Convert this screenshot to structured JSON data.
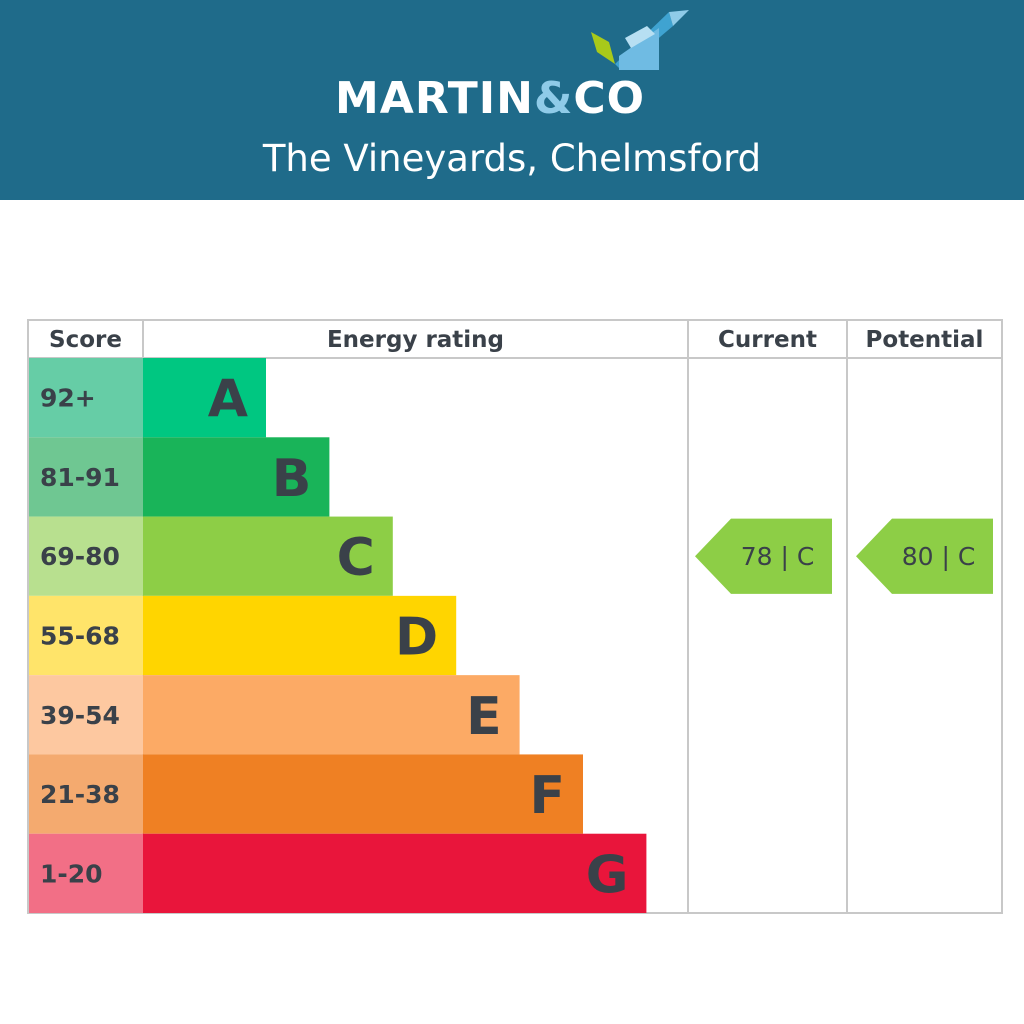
{
  "brand": {
    "logo_main": "MARTIN",
    "logo_amp": "&",
    "logo_end": "CO",
    "branch": "The Vineyards, Chelmsford"
  },
  "chart_data": {
    "type": "bar",
    "columns": [
      "Score",
      "Energy rating",
      "Current",
      "Potential"
    ],
    "bands": [
      {
        "score": "92+",
        "rating": "A",
        "length": 1,
        "color": "#00c781",
        "score_color": "#66cda6"
      },
      {
        "score": "81-91",
        "rating": "B",
        "length": 2,
        "color": "#19b459",
        "score_color": "#6fc792"
      },
      {
        "score": "69-80",
        "rating": "C",
        "length": 3,
        "color": "#8dce46",
        "score_color": "#b8e08f"
      },
      {
        "score": "55-68",
        "rating": "D",
        "length": 4,
        "color": "#ffd500",
        "score_color": "#ffe46a"
      },
      {
        "score": "39-54",
        "rating": "E",
        "length": 5,
        "color": "#fcaa65",
        "score_color": "#fdc8a0"
      },
      {
        "score": "21-38",
        "rating": "F",
        "length": 6,
        "color": "#ef8023",
        "score_color": "#f4aa6f"
      },
      {
        "score": "1-20",
        "rating": "G",
        "length": 7,
        "color": "#e9153b",
        "score_color": "#f26f86"
      }
    ],
    "current": {
      "value": 78,
      "band": "C",
      "label": "78 | C",
      "color": "#8dce46"
    },
    "potential": {
      "value": 80,
      "band": "C",
      "label": "80 | C",
      "color": "#8dce46"
    },
    "text_color": "#3a4149",
    "grid_color": "#c8c8c8"
  }
}
